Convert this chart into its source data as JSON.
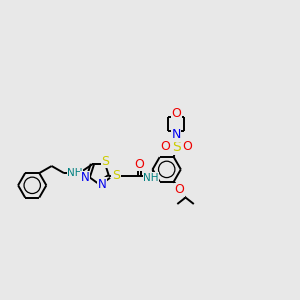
{
  "bg_color": "#e8e8e8",
  "C": "#000000",
  "N": "#0000ee",
  "O": "#ee0000",
  "S": "#cccc00",
  "H": "#008080",
  "bond": "#000000",
  "figsize": [
    3.0,
    3.0
  ],
  "dpi": 100
}
